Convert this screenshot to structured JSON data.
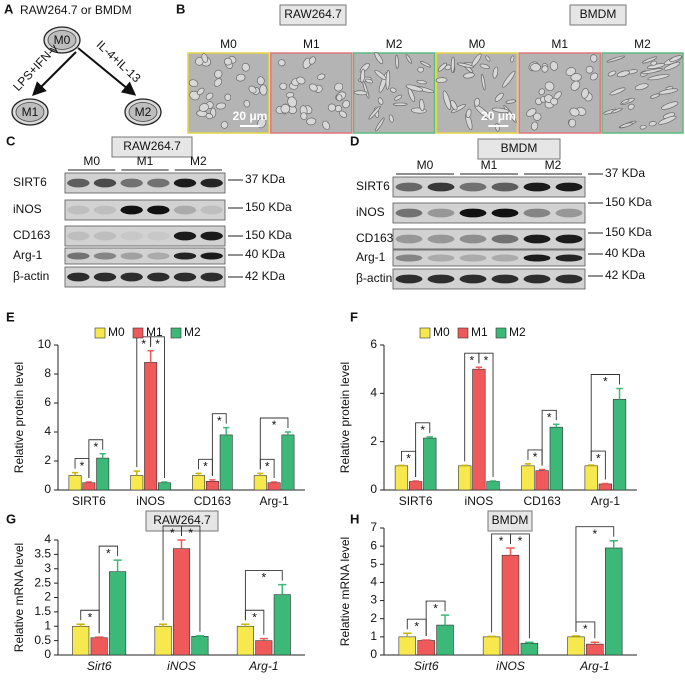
{
  "panels": {
    "A": {
      "label": "A",
      "title": "RAW264.7 or BMDM",
      "nodes": [
        "M0",
        "M1",
        "M2"
      ],
      "arrows": [
        "LPS+IFN-γ",
        "IL-4+IL-13"
      ]
    },
    "B": {
      "label": "B",
      "groups": [
        "RAW264.7",
        "BMDM"
      ],
      "columns": [
        "M0",
        "M1",
        "M2",
        "M0",
        "M1",
        "M2"
      ],
      "scale_bar": "20 μm"
    },
    "C": {
      "label": "C",
      "title": "RAW264.7",
      "groups": [
        "M0",
        "M1",
        "M2"
      ],
      "rows": [
        "SIRT6",
        "iNOS",
        "CD163",
        "Arg-1",
        "β-actin"
      ],
      "sizes": [
        "37 KDa",
        "150 KDa",
        "150 KDa",
        "40 KDa",
        "42 KDa"
      ]
    },
    "D": {
      "label": "D",
      "title": "BMDM",
      "groups": [
        "M0",
        "M1",
        "M2"
      ],
      "rows": [
        "SIRT6",
        "iNOS",
        "CD163",
        "Arg-1",
        "β-actin"
      ],
      "sizes": [
        "37 KDa",
        "150 KDa",
        "150 KDa",
        "40 KDa",
        "42 KDa"
      ]
    }
  },
  "chart_data": [
    {
      "type": "bar",
      "panel": "E",
      "ylabel": "Relative protein level",
      "legend": true,
      "error_bars": true,
      "categories": [
        "SIRT6",
        "iNOS",
        "CD163",
        "Arg-1"
      ],
      "series": [
        {
          "name": "M0",
          "color": "#f7e84e",
          "values": [
            1,
            1,
            1,
            1
          ],
          "errors": [
            0.2,
            0.3,
            0.15,
            0.15
          ]
        },
        {
          "name": "M1",
          "color": "#f0595a",
          "values": [
            0.5,
            8.8,
            0.6,
            0.5
          ],
          "errors": [
            0.05,
            0.8,
            0.1,
            0.05
          ],
          "significance": [
            "*",
            "*",
            "*",
            "*"
          ]
        },
        {
          "name": "M2",
          "color": "#3cb878",
          "values": [
            2.2,
            0.5,
            3.8,
            3.8
          ],
          "errors": [
            0.3,
            0.05,
            0.5,
            0.2
          ],
          "significance": [
            "*",
            "*",
            "*",
            "*"
          ]
        }
      ],
      "ylim": [
        0,
        10
      ],
      "yticks": [
        0,
        2,
        4,
        6,
        8,
        10
      ]
    },
    {
      "type": "bar",
      "panel": "F",
      "ylabel": "Relative protein level",
      "legend": true,
      "error_bars": true,
      "categories": [
        "SIRT6",
        "iNOS",
        "CD163",
        "Arg-1"
      ],
      "series": [
        {
          "name": "M0",
          "color": "#f7e84e",
          "values": [
            1,
            1,
            1,
            1
          ],
          "errors": [
            0.02,
            0.02,
            0.08,
            0.03
          ]
        },
        {
          "name": "M1",
          "color": "#f0595a",
          "values": [
            0.35,
            5,
            0.8,
            0.25
          ],
          "errors": [
            0.02,
            0.08,
            0.05,
            0.02
          ],
          "significance": [
            "*",
            "*",
            "*",
            "*"
          ]
        },
        {
          "name": "M2",
          "color": "#3cb878",
          "values": [
            2.15,
            0.35,
            2.6,
            3.75
          ],
          "errors": [
            0.05,
            0.02,
            0.12,
            0.45
          ],
          "significance": [
            "*",
            "*",
            "*",
            "*"
          ]
        }
      ],
      "ylim": [
        0,
        6
      ],
      "yticks": [
        0,
        2,
        4,
        6
      ]
    },
    {
      "type": "bar",
      "panel": "G",
      "title": "RAW264.7",
      "ylabel": "Relative mRNA level",
      "legend": false,
      "error_bars": true,
      "italic_categories": true,
      "categories": [
        "Sirt6",
        "iNOS",
        "Arg-1"
      ],
      "series": [
        {
          "name": "M0",
          "color": "#f7e84e",
          "values": [
            1,
            1,
            1
          ],
          "errors": [
            0.07,
            0.07,
            0.07
          ]
        },
        {
          "name": "M1",
          "color": "#f0595a",
          "values": [
            0.6,
            3.7,
            0.5
          ],
          "errors": [
            0.02,
            0.3,
            0.07
          ],
          "significance": [
            "*",
            "*",
            "*"
          ]
        },
        {
          "name": "M2",
          "color": "#3cb878",
          "values": [
            2.9,
            0.65,
            2.1
          ],
          "errors": [
            0.4,
            0.02,
            0.35
          ],
          "significance": [
            "*",
            "*",
            "*"
          ]
        }
      ],
      "ylim": [
        0,
        4
      ],
      "yticks": [
        0,
        0.5,
        1,
        1.5,
        2,
        2.5,
        3,
        3.5,
        4
      ]
    },
    {
      "type": "bar",
      "panel": "H",
      "title": "BMDM",
      "ylabel": "Relative mRNA level",
      "legend": false,
      "error_bars": true,
      "italic_categories": true,
      "categories": [
        "Sirt6",
        "iNOS",
        "Arg-1"
      ],
      "series": [
        {
          "name": "M0",
          "color": "#f7e84e",
          "values": [
            1,
            1,
            1
          ],
          "errors": [
            0.2,
            0.03,
            0.05
          ]
        },
        {
          "name": "M1",
          "color": "#f0595a",
          "values": [
            0.8,
            5.5,
            0.6
          ],
          "errors": [
            0.03,
            0.4,
            0.1
          ],
          "significance": [
            "*",
            "*",
            "*"
          ]
        },
        {
          "name": "M2",
          "color": "#3cb878",
          "values": [
            1.65,
            0.65,
            5.9
          ],
          "errors": [
            0.55,
            0.05,
            0.4
          ],
          "significance": [
            "*",
            "*",
            "*"
          ]
        }
      ],
      "ylim": [
        0,
        7
      ],
      "yticks": [
        0,
        1,
        2,
        3,
        4,
        5,
        6,
        7
      ]
    }
  ]
}
